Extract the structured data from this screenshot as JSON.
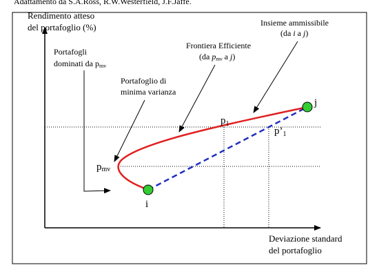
{
  "source": "Adattamento da S.A.Ross, R.W.Westerfield, J.F.Jaffe.",
  "y_axis_label": [
    "Rendimento atteso",
    "del portafoglio (%)"
  ],
  "x_axis_label": [
    "Deviazione standard",
    "del portafoglio"
  ],
  "dominated": {
    "line1": "Portafogli",
    "line2": "dominati da p",
    "sub": "mv"
  },
  "min_variance": [
    "Portafoglio di",
    "minima varianza"
  ],
  "frontier": {
    "line1": "Frontiera Efficiente",
    "open": "(da ",
    "p": "p",
    "sub": "mv",
    "mid": " a ",
    "j": "j",
    "close": ")"
  },
  "feasible": {
    "line1": "Insieme ammissibile",
    "open": "(da ",
    "i": "i",
    "mid": " a ",
    "j": "j",
    "close": ")"
  },
  "points": {
    "p1": {
      "p": "p",
      "sub": "1"
    },
    "p1_prime": {
      "p": "p’",
      "sub": "1"
    },
    "pmv": {
      "p": "p",
      "sub": "mv"
    },
    "i": "i",
    "j": "j"
  }
}
